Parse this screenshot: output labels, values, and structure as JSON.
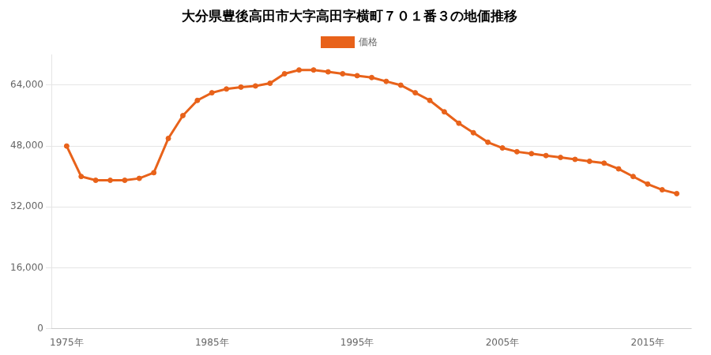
{
  "chart_data": {
    "type": "line",
    "title": "大分県豊後高田市大字高田字横町７０１番３の地価推移",
    "x": [
      1975,
      1976,
      1977,
      1978,
      1979,
      1980,
      1981,
      1982,
      1983,
      1984,
      1985,
      1986,
      1987,
      1988,
      1989,
      1990,
      1991,
      1992,
      1993,
      1994,
      1995,
      1996,
      1997,
      1998,
      1999,
      2000,
      2001,
      2002,
      2003,
      2004,
      2005,
      2006,
      2007,
      2008,
      2009,
      2010,
      2011,
      2012,
      2013,
      2014,
      2015,
      2016,
      2017
    ],
    "series": [
      {
        "name": "価格",
        "color": "#e8621a",
        "marker": "circle",
        "values": [
          48000,
          40000,
          39000,
          39000,
          39000,
          39500,
          41000,
          50000,
          56000,
          60000,
          62000,
          63000,
          63500,
          63800,
          64500,
          67000,
          68000,
          68000,
          67500,
          67000,
          66500,
          66000,
          65000,
          64000,
          62000,
          60000,
          57000,
          54000,
          51500,
          49000,
          47500,
          46500,
          46000,
          45500,
          45000,
          44500,
          44000,
          43500,
          42000,
          40000,
          38000,
          36500,
          35500
        ]
      }
    ],
    "xlim": [
      1974,
      2018
    ],
    "xticks": [
      {
        "value": 1975,
        "label": "1975年"
      },
      {
        "value": 1985,
        "label": "1985年"
      },
      {
        "value": 1995,
        "label": "1995年"
      },
      {
        "value": 2005,
        "label": "2005年"
      },
      {
        "value": 2015,
        "label": "2015年"
      }
    ],
    "ylim": [
      0,
      72000
    ],
    "yticks": [
      0,
      {
        "value": 16000,
        "label": "16,000"
      },
      {
        "value": 32000,
        "label": "32,000"
      },
      {
        "value": 48000,
        "label": "48,000"
      },
      {
        "value": 64000,
        "label": "64,000"
      }
    ],
    "grid": "y",
    "legend": "top"
  }
}
